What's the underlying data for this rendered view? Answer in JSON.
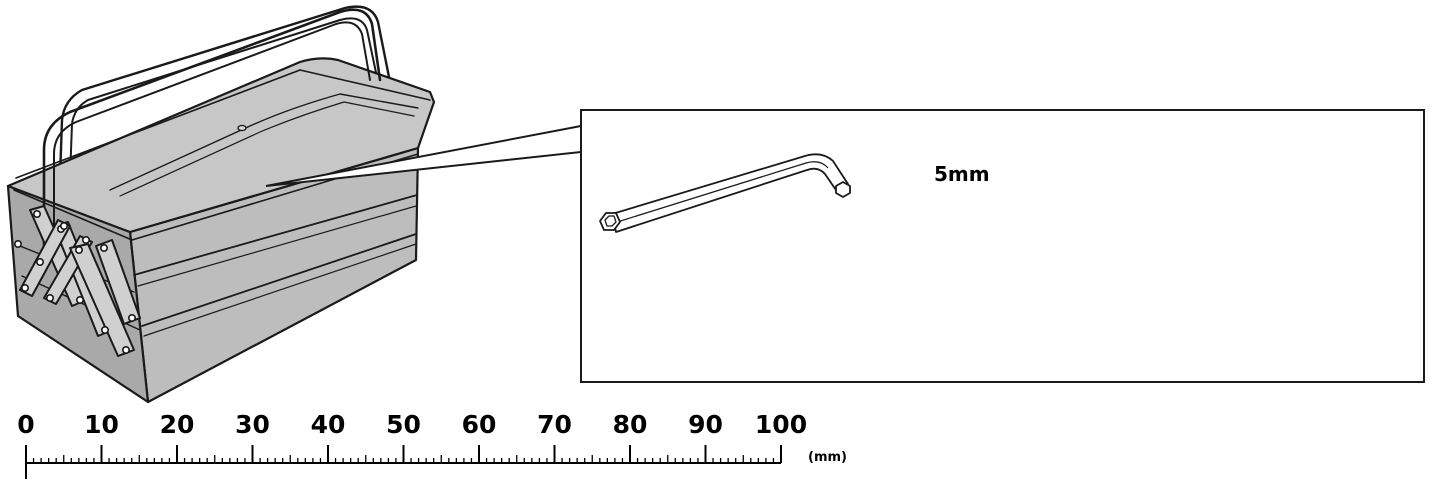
{
  "callout": {
    "size_label": "5mm"
  },
  "ruler": {
    "unit_label": "(mm)",
    "min": 0,
    "max": 100,
    "major_step": 10,
    "half_step": 5,
    "minor_step": 1,
    "labels": [
      "0",
      "10",
      "20",
      "30",
      "40",
      "50",
      "60",
      "70",
      "80",
      "90",
      "100"
    ]
  }
}
